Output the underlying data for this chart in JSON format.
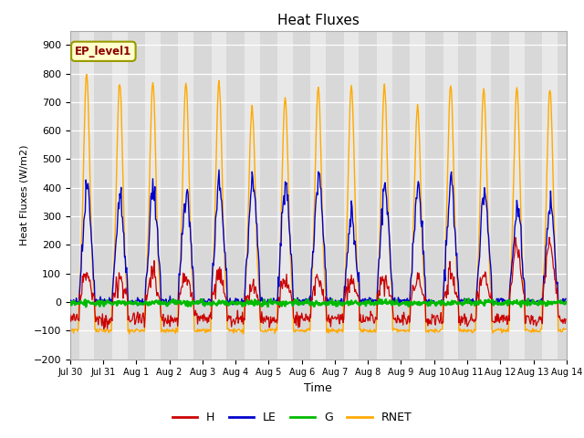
{
  "title": "Heat Fluxes",
  "ylabel": "Heat Fluxes (W/m2)",
  "xlabel": "Time",
  "ylim": [
    -200,
    950
  ],
  "yticks": [
    -200,
    -100,
    0,
    100,
    200,
    300,
    400,
    500,
    600,
    700,
    800,
    900
  ],
  "fig_bg_color": "#ffffff",
  "plot_bg_color": "#d8d8d8",
  "daytime_color": "#e8e8e8",
  "colors": {
    "H": "#cc0000",
    "LE": "#0000cc",
    "G": "#00bb00",
    "RNET": "#ffaa00"
  },
  "legend_label": "EP_level1",
  "n_days": 15,
  "dt_minutes": 30,
  "x_tick_labels": [
    "Jul 30",
    "Jul 31",
    "Aug 1",
    "Aug 2",
    "Aug 3",
    "Aug 4",
    "Aug 5",
    "Aug 6",
    "Aug 7",
    "Aug 8",
    "Aug 9",
    "Aug 10",
    "Aug 11",
    "Aug 12",
    "Aug 13",
    "Aug 14"
  ]
}
